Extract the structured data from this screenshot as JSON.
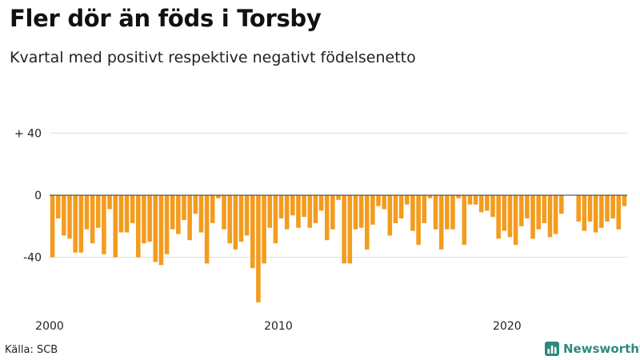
{
  "title": "Fler dör än föds i Torsby",
  "subtitle": "Kvartal med positivt respektive negativt födelsenetto",
  "source": "Källa: SCB",
  "brand": "Newsworthy",
  "colors": {
    "bar": "#f39c1e",
    "grid": "#dddddd",
    "brand": "#2f8a7a"
  },
  "chart_data": {
    "type": "bar",
    "title": "Fler dör än föds i Torsby",
    "subtitle": "Kvartal med positivt respektive negativt födelsenetto",
    "xlabel": "",
    "ylabel": "",
    "ylim": [
      -70,
      50
    ],
    "yticks": [
      {
        "value": 40,
        "label": "+ 40"
      },
      {
        "value": 0,
        "label": "0"
      },
      {
        "value": -40,
        "label": "-40"
      }
    ],
    "xticks": [
      {
        "index": 0,
        "label": "2000"
      },
      {
        "index": 40,
        "label": "2010"
      },
      {
        "index": 80,
        "label": "2020"
      }
    ],
    "start": "2000 Q1",
    "grid": true,
    "values": [
      -40,
      -15,
      -26,
      -28,
      -37,
      -37,
      -22,
      -31,
      -21,
      -38,
      -9,
      -40,
      -24,
      -24,
      -18,
      -40,
      -31,
      -30,
      -43,
      -45,
      -38,
      -22,
      -25,
      -16,
      -29,
      -12,
      -24,
      -44,
      -18,
      -2,
      -22,
      -31,
      -35,
      -30,
      -26,
      -47,
      -69,
      -44,
      -21,
      -31,
      -15,
      -22,
      -13,
      -21,
      -14,
      -21,
      -18,
      -10,
      -29,
      -22,
      -3,
      -44,
      -44,
      -22,
      -21,
      -35,
      -19,
      -7,
      -9,
      -26,
      -18,
      -15,
      -6,
      -23,
      -32,
      -18,
      -2,
      -22,
      -35,
      -22,
      -22,
      -2,
      -32,
      -6,
      -6,
      -11,
      -10,
      -14,
      -28,
      -23,
      -27,
      -32,
      -20,
      -15,
      -28,
      -22,
      -18,
      -27,
      -25,
      -12,
      0,
      0,
      -17,
      -23,
      -17,
      -24,
      -21,
      -17,
      -15,
      -22,
      -7
    ]
  }
}
